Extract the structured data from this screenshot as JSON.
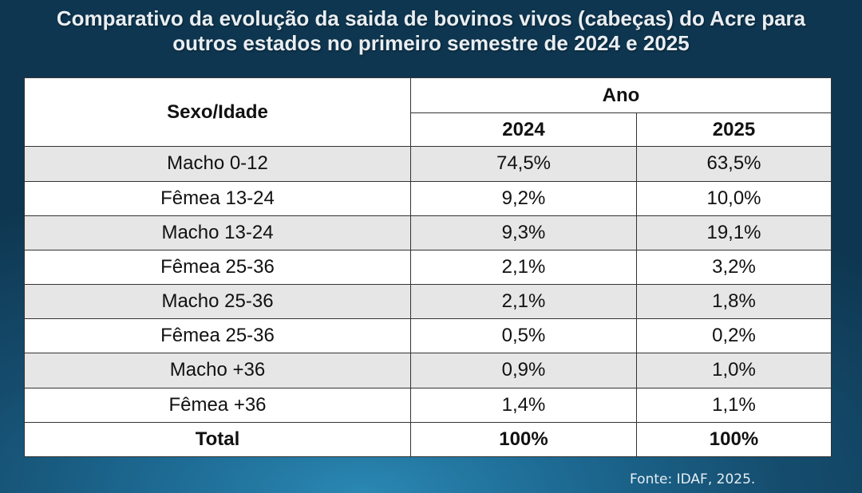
{
  "title_line1": "Comparativo da evolução da saida de bovinos vivos (cabeças) do Acre para",
  "title_line2": "outros estados no primeiro semestre de 2024 e 2025",
  "chart_data": {
    "type": "table",
    "row_header": "Sexo/Idade",
    "group_header": "Ano",
    "columns": [
      "2024",
      "2025"
    ],
    "rows": [
      {
        "label": "Macho 0-12",
        "values": [
          "74,5%",
          "63,5%"
        ]
      },
      {
        "label": "Fêmea 13-24",
        "values": [
          "9,2%",
          "10,0%"
        ]
      },
      {
        "label": "Macho 13-24",
        "values": [
          "9,3%",
          "19,1%"
        ]
      },
      {
        "label": "Fêmea 25-36",
        "values": [
          "2,1%",
          "3,2%"
        ]
      },
      {
        "label": "Macho 25-36",
        "values": [
          "2,1%",
          "1,8%"
        ]
      },
      {
        "label": "Fêmea 25-36",
        "values": [
          "0,5%",
          "0,2%"
        ]
      },
      {
        "label": "Macho +36",
        "values": [
          "0,9%",
          "1,0%"
        ]
      },
      {
        "label": "Fêmea +36",
        "values": [
          "1,4%",
          "1,1%"
        ]
      }
    ],
    "total": {
      "label": "Total",
      "values": [
        "100%",
        "100%"
      ]
    }
  },
  "source": "Fonte: IDAF, 2025.",
  "colors": {
    "background": "#154c6d",
    "row_shade": "#e6e6e6",
    "title_text": "#e9eef2"
  }
}
